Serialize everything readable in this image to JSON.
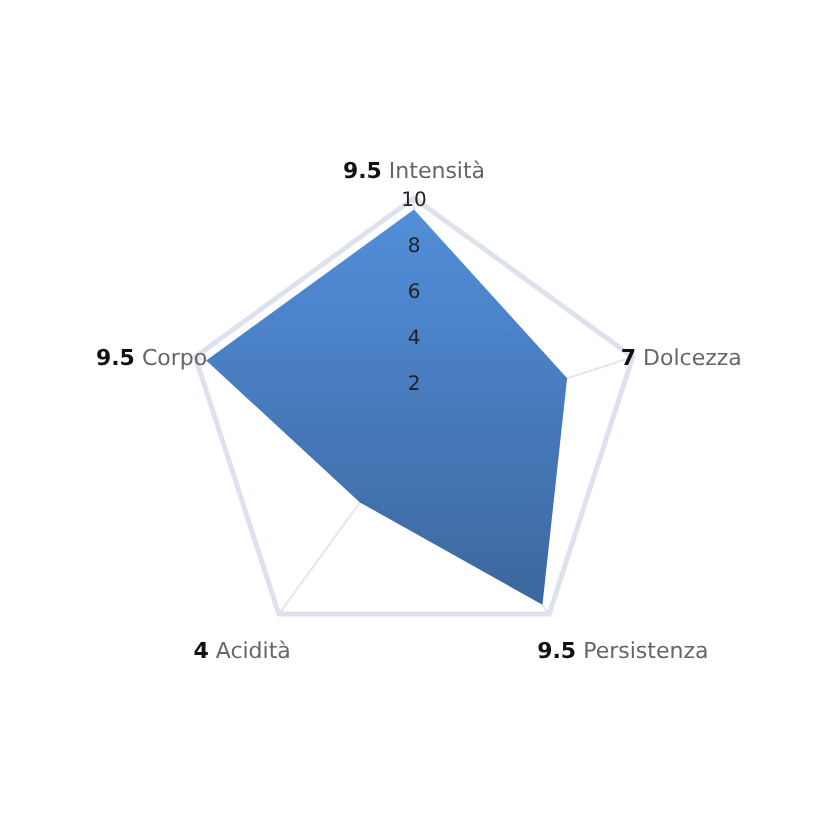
{
  "chart_data": {
    "type": "radar",
    "categories": [
      "9.5 Intensità",
      "7 Dolcezza",
      "9.5 Persistenza",
      "4 Acidità",
      "9.5 Corpo"
    ],
    "series": [
      {
        "color": "#4a80c4",
        "values": [
          9.5,
          7,
          9.5,
          4,
          9.5
        ]
      }
    ],
    "ylim": [
      0,
      10
    ],
    "yticks": [
      2,
      4,
      6,
      8,
      10
    ],
    "grid": true
  }
}
